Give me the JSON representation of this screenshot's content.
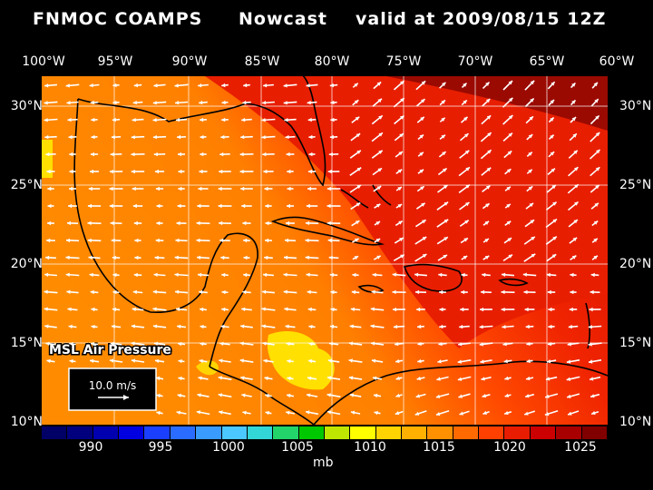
{
  "header": {
    "left": "FNMOC COAMPS",
    "middle": "Nowcast",
    "right": "valid at 2009/08/15 12Z"
  },
  "axes": {
    "longitudes": [
      "100°W",
      "95°W",
      "90°W",
      "85°W",
      "80°W",
      "75°W",
      "70°W",
      "65°W",
      "60°W"
    ],
    "latitudes": [
      "30°N",
      "25°N",
      "20°N",
      "15°N",
      "10°N"
    ]
  },
  "map": {
    "field_label": "MSL Air Pressure",
    "vector_scale_label": "10.0 m/s"
  },
  "colorbar": {
    "ticks": [
      "990",
      "995",
      "1000",
      "1005",
      "1010",
      "1015",
      "1020",
      "1025"
    ],
    "unit": "mb",
    "colors": [
      "#000066",
      "#00007f",
      "#0000b0",
      "#0000e0",
      "#1a3fff",
      "#2a6cff",
      "#3a9bff",
      "#4ac8ff",
      "#33d6d6",
      "#22d46a",
      "#00c800",
      "#bfe600",
      "#ffff00",
      "#ffd400",
      "#ffb000",
      "#ff9000",
      "#ff6a00",
      "#ff4000",
      "#e81c00",
      "#cc0000",
      "#a80000",
      "#800000"
    ]
  },
  "colors": {
    "background": "#000000",
    "pressure_low": "#ffff00",
    "pressure_mid": "#ff8c00",
    "pressure_high": "#e01400",
    "pressure_max": "#7a0000",
    "arrows": "#ffffff"
  }
}
